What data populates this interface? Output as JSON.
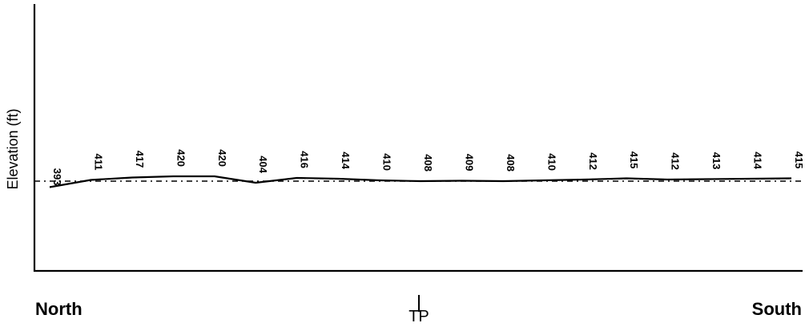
{
  "chart_data": {
    "type": "line",
    "title": "",
    "ylabel": "Elevation (ft)",
    "xlabel": "",
    "left_label": "North",
    "right_label": "South",
    "marker_label": "TP",
    "values": [
      393,
      411,
      417,
      420,
      420,
      404,
      416,
      414,
      410,
      408,
      409,
      408,
      410,
      412,
      415,
      412,
      413,
      414,
      415
    ],
    "value_labels": [
      "393",
      "411",
      "417",
      "420",
      "420",
      "404",
      "416",
      "414",
      "410",
      "408",
      "409",
      "408",
      "410",
      "412",
      "415",
      "412",
      "413",
      "414",
      "415"
    ],
    "reference_line_value": 408,
    "reference_line_style": "dash-dot",
    "grid": false,
    "colors": {
      "line": "#000000",
      "axis": "#000000",
      "text": "#000000",
      "background": "#ffffff"
    }
  }
}
